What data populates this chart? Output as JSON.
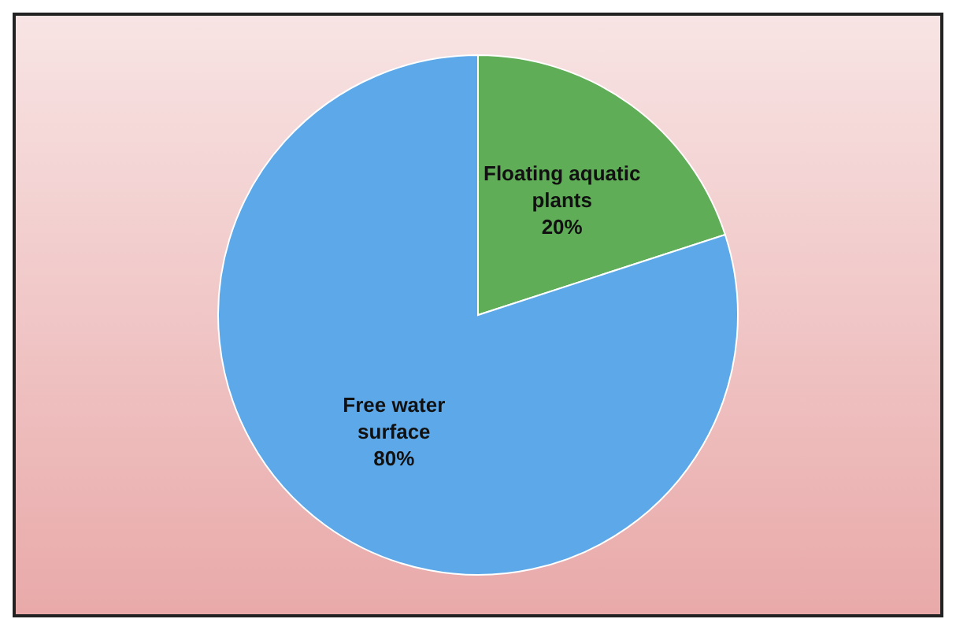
{
  "chart_data": {
    "type": "pie",
    "categories": [
      "Floating aquatic plants",
      "Free water surface"
    ],
    "values": [
      20,
      80
    ],
    "colors": [
      "#5fad56",
      "#5ca8e8"
    ],
    "value_labels": [
      "20%",
      "80%"
    ],
    "legend": false
  }
}
